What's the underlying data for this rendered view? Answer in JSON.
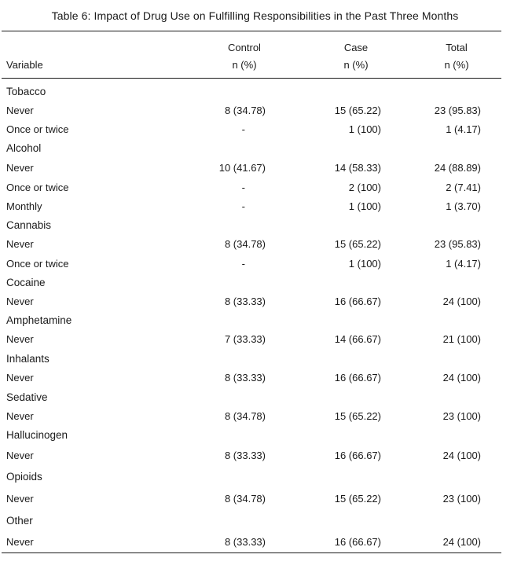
{
  "caption": "Table 6: Impact of Drug Use on Fulfilling Responsibilities in the Past Three Months",
  "columns": {
    "variable": "Variable",
    "control": {
      "line1": "Control",
      "line2": "n (%)"
    },
    "case": {
      "line1": "Case",
      "line2": "n (%)"
    },
    "total": {
      "line1": "Total",
      "line2": "n (%)"
    }
  },
  "rows": [
    {
      "type": "group",
      "label": "Tobacco"
    },
    {
      "type": "data",
      "label": "Never",
      "control": "8 (34.78)",
      "case": "15 (65.22)",
      "total": "23 (95.83)"
    },
    {
      "type": "data",
      "label": "Once or twice",
      "control": "-",
      "case": "1 (100)",
      "total": "1 (4.17)"
    },
    {
      "type": "group",
      "label": "Alcohol"
    },
    {
      "type": "data",
      "label": "Never",
      "control": "10 (41.67)",
      "case": "14 (58.33)",
      "total": "24 (88.89)"
    },
    {
      "type": "data",
      "label": "Once or twice",
      "control": "-",
      "case": "2 (100)",
      "total": "2 (7.41)"
    },
    {
      "type": "data",
      "label": "Monthly",
      "control": "-",
      "case": "1 (100)",
      "total": "1 (3.70)"
    },
    {
      "type": "group",
      "label": "Cannabis"
    },
    {
      "type": "data",
      "label": "Never",
      "control": "8 (34.78)",
      "case": "15 (65.22)",
      "total": "23 (95.83)"
    },
    {
      "type": "data",
      "label": "Once or twice",
      "control": "-",
      "case": "1 (100)",
      "total": "1 (4.17)"
    },
    {
      "type": "group",
      "label": "Cocaine"
    },
    {
      "type": "data",
      "label": "Never",
      "control": "8 (33.33)",
      "case": "16 (66.67)",
      "total": "24 (100)"
    },
    {
      "type": "group",
      "label": "Amphetamine"
    },
    {
      "type": "data",
      "label": "Never",
      "control": "7 (33.33)",
      "case": "14 (66.67)",
      "total": "21 (100)"
    },
    {
      "type": "group",
      "label": "Inhalants"
    },
    {
      "type": "data",
      "label": "Never",
      "control": "8 (33.33)",
      "case": "16 (66.67)",
      "total": "24 (100)"
    },
    {
      "type": "group",
      "label": "Sedative"
    },
    {
      "type": "data",
      "label": "Never",
      "control": "8 (34.78)",
      "case": "15 (65.22)",
      "total": "23 (100)"
    },
    {
      "type": "group",
      "label": "Hallucinogen"
    },
    {
      "type": "data",
      "label": "Never",
      "control": "8 (33.33)",
      "case": "16 (66.67)",
      "total": "24 (100)"
    },
    {
      "type": "group",
      "label": "Opioids"
    },
    {
      "type": "data",
      "label": "Never",
      "control": "8 (34.78)",
      "case": "15 (65.22)",
      "total": "23 (100)"
    },
    {
      "type": "group",
      "label": "Other"
    },
    {
      "type": "data",
      "label": "Never",
      "control": "8 (33.33)",
      "case": "16 (66.67)",
      "total": "24 (100)"
    }
  ]
}
